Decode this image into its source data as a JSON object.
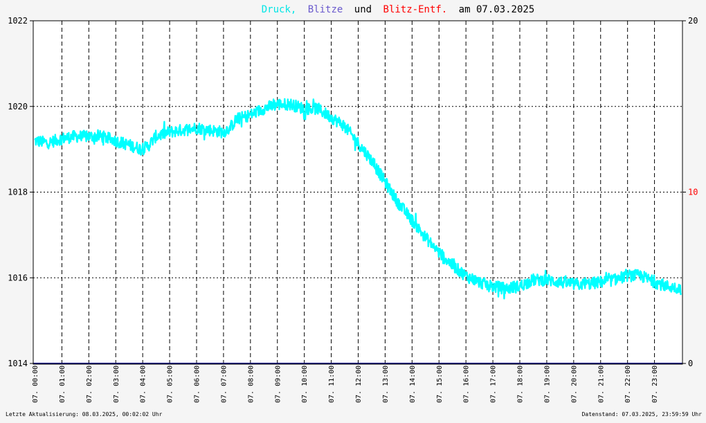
{
  "title": {
    "part1": "Druck,",
    "part2": "Blitze",
    "part3": "und",
    "part4": "Blitz-Entf.",
    "part5": "am 07.03.2025"
  },
  "footer": {
    "left": "Letzte Aktualisierung: 08.03.2025, 00:02:02 Uhr",
    "right": "Datenstand: 07.03.2025, 23:59:59 Uhr"
  },
  "colors": {
    "background": "#f5f5f5",
    "plot_background": "#ffffff",
    "pressure": "#00ffff",
    "lightning": "#6a5acd",
    "lightning_distance": "#ff0000",
    "text": "#000000",
    "zero_line": "#000080"
  },
  "chart_data": {
    "type": "line",
    "title": "Druck, Blitze und Blitz-Entf. am 07.03.2025",
    "x_tick_labels": [
      "07. 00:00",
      "07. 01:00",
      "07. 02:00",
      "07. 03:00",
      "07. 04:00",
      "07. 05:00",
      "07. 06:00",
      "07. 07:00",
      "07. 08:00",
      "07. 09:00",
      "07. 10:00",
      "07. 11:00",
      "07. 12:00",
      "07. 13:00",
      "07. 14:00",
      "07. 15:00",
      "07. 16:00",
      "07. 17:00",
      "07. 18:00",
      "07. 19:00",
      "07. 20:00",
      "07. 21:00",
      "07. 22:00",
      "07. 23:00"
    ],
    "x_range_hours": [
      0,
      24
    ],
    "y_left": {
      "min": 1014,
      "max": 1022,
      "ticks": [
        "1014",
        "1016",
        "1018",
        "1020",
        "1022"
      ]
    },
    "y_right": {
      "min": 0,
      "max": 20,
      "ticks": [
        "0",
        "10",
        "20"
      ]
    },
    "grid": true,
    "series": [
      {
        "name": "Druck",
        "axis": "left",
        "x": [
          0.0,
          0.5,
          1.0,
          1.5,
          2.0,
          2.5,
          3.0,
          3.5,
          4.0,
          4.25,
          4.5,
          5.0,
          5.5,
          6.0,
          6.5,
          7.0,
          7.25,
          7.5,
          8.0,
          8.5,
          9.0,
          9.5,
          10.0,
          10.5,
          11.0,
          11.5,
          12.0,
          12.5,
          13.0,
          13.5,
          14.0,
          14.5,
          15.0,
          15.5,
          16.0,
          16.5,
          17.0,
          17.5,
          18.0,
          18.5,
          19.0,
          19.5,
          20.0,
          20.5,
          21.0,
          21.5,
          22.0,
          22.5,
          23.0,
          23.5,
          24.0
        ],
        "y": [
          1019.2,
          1019.15,
          1019.25,
          1019.3,
          1019.3,
          1019.3,
          1019.2,
          1019.1,
          1019.0,
          1019.1,
          1019.3,
          1019.4,
          1019.45,
          1019.5,
          1019.45,
          1019.4,
          1019.5,
          1019.7,
          1019.8,
          1019.95,
          1020.05,
          1020.05,
          1019.95,
          1019.95,
          1019.75,
          1019.55,
          1019.15,
          1018.75,
          1018.25,
          1017.75,
          1017.35,
          1016.95,
          1016.6,
          1016.3,
          1016.05,
          1015.9,
          1015.8,
          1015.75,
          1015.8,
          1015.95,
          1015.95,
          1015.9,
          1015.85,
          1015.85,
          1015.9,
          1015.95,
          1016.05,
          1016.05,
          1015.9,
          1015.8,
          1015.75
        ]
      },
      {
        "name": "Blitze",
        "axis": "right",
        "x": [
          0,
          24
        ],
        "y": [
          0,
          0
        ]
      },
      {
        "name": "Blitz-Entf.",
        "axis": "right",
        "x": [
          0,
          24
        ],
        "y": [
          0,
          0
        ]
      }
    ]
  }
}
